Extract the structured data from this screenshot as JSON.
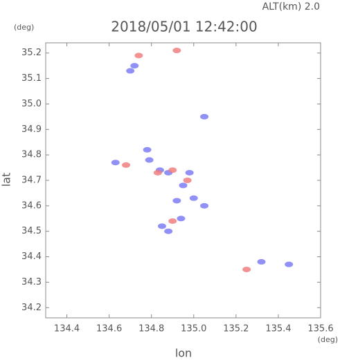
{
  "chart_data": {
    "type": "scatter",
    "title": "2018/05/01 12:42:00",
    "subtitle": "ALT(km) 2.0",
    "x_label": "lon",
    "y_label": "lat",
    "x_unit": "(deg)",
    "y_unit": "(deg)",
    "xlim": [
      134.3,
      135.6
    ],
    "ylim": [
      34.16,
      35.24
    ],
    "xticks": [
      134.4,
      134.6,
      134.8,
      {
        "value": 135.0,
        "label": "135.0"
      },
      135.2,
      135.4,
      135.6
    ],
    "yticks": [
      34.2,
      34.3,
      34.4,
      34.5,
      34.6,
      34.7,
      34.8,
      34.9,
      {
        "value": 35.0,
        "label": "35.0"
      },
      35.1,
      35.2
    ],
    "series": [
      {
        "color": "#7d7df5",
        "x": [
          134.72,
          134.7,
          134.63,
          134.78,
          134.79,
          134.84,
          134.88,
          134.98,
          134.95,
          135.0,
          134.94,
          134.85,
          134.88,
          135.05,
          135.32,
          135.45,
          135.05,
          134.92
        ],
        "y": [
          35.15,
          35.13,
          34.77,
          34.82,
          34.78,
          34.74,
          34.73,
          34.73,
          34.68,
          34.63,
          34.55,
          34.52,
          34.5,
          34.6,
          34.38,
          34.37,
          34.95,
          34.62
        ]
      },
      {
        "color": "#f07f7f",
        "x": [
          134.92,
          134.68,
          134.83,
          134.9,
          134.97,
          135.25,
          134.9,
          134.74
        ],
        "y": [
          35.21,
          34.76,
          34.73,
          34.74,
          34.7,
          34.35,
          34.54,
          35.19
        ]
      }
    ]
  }
}
